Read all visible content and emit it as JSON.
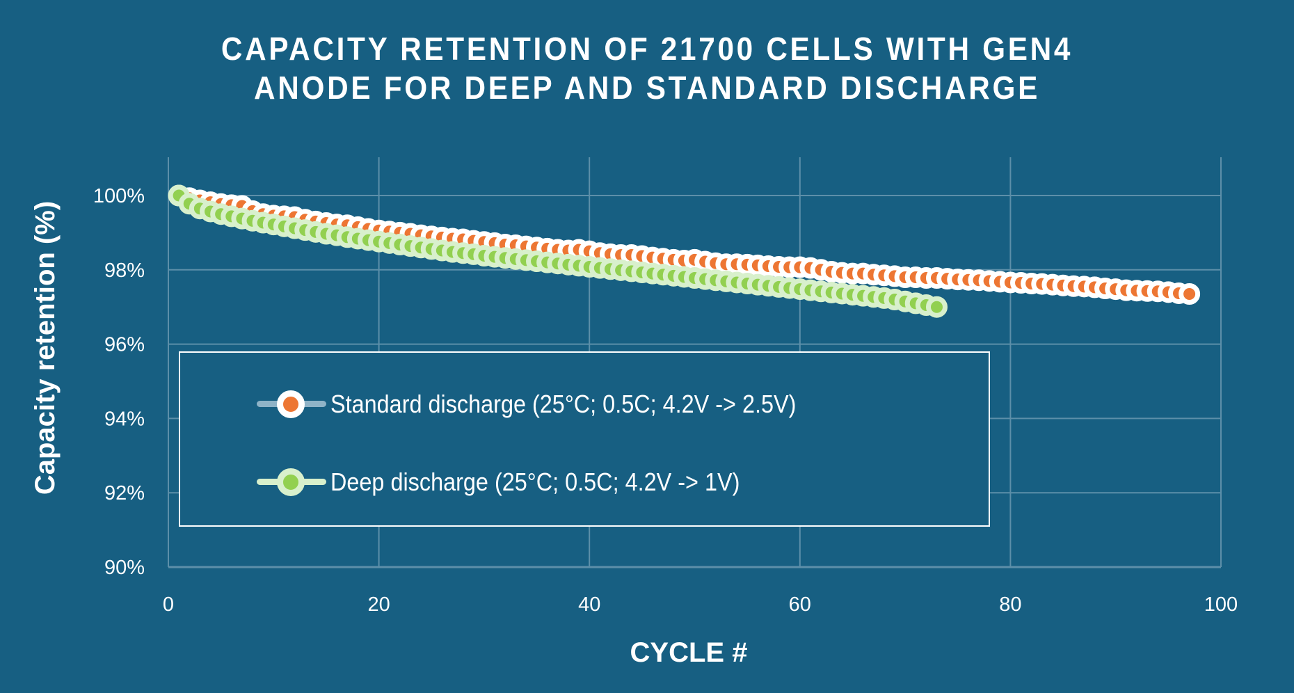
{
  "chart_data": {
    "type": "scatter",
    "title": "CAPACITY RETENTION OF 21700 CELLS WITH GEN4 ANODE FOR DEEP AND STANDARD DISCHARGE",
    "title_lines": [
      "CAPACITY RETENTION OF 21700 CELLS WITH GEN4",
      "ANODE FOR DEEP AND STANDARD DISCHARGE"
    ],
    "xlabel": "CYCLE #",
    "ylabel": "Capacity retention (%)",
    "xlim": [
      0,
      100
    ],
    "ylim": [
      90,
      100.5
    ],
    "xticks": [
      0,
      20,
      40,
      60,
      80,
      100
    ],
    "xtick_labels": [
      "0",
      "20",
      "40",
      "60",
      "80",
      "100"
    ],
    "yticks": [
      90,
      92,
      94,
      96,
      98,
      100
    ],
    "ytick_labels": [
      "90%",
      "92%",
      "94%",
      "96%",
      "98%",
      "100%"
    ],
    "grid": true,
    "legend_position": "center-left",
    "colors": {
      "background": "#175f82",
      "standard_fill": "#ed7633",
      "standard_outline": "#ffffff",
      "standard_legend_line": "#8fb3c7",
      "deep_fill": "#92d050",
      "deep_outline": "#d8f0cc",
      "grid": "#5d8fa9"
    },
    "series": [
      {
        "name": "Standard discharge (25°C; 0.5C;  4.2V -> 2.5V)",
        "x_start": 1,
        "values": [
          100.0,
          99.93,
          99.87,
          99.82,
          99.77,
          99.74,
          99.72,
          99.58,
          99.5,
          99.46,
          99.44,
          99.42,
          99.35,
          99.3,
          99.26,
          99.22,
          99.2,
          99.15,
          99.1,
          99.06,
          99.03,
          99.0,
          98.97,
          98.93,
          98.9,
          98.87,
          98.84,
          98.82,
          98.78,
          98.75,
          98.72,
          98.68,
          98.66,
          98.63,
          98.6,
          98.57,
          98.54,
          98.52,
          98.54,
          98.5,
          98.45,
          98.42,
          98.4,
          98.4,
          98.37,
          98.33,
          98.3,
          98.27,
          98.25,
          98.27,
          98.22,
          98.18,
          98.15,
          98.15,
          98.14,
          98.12,
          98.1,
          98.08,
          98.07,
          98.07,
          98.05,
          98.0,
          97.95,
          97.92,
          97.9,
          97.9,
          97.87,
          97.85,
          97.83,
          97.8,
          97.8,
          97.78,
          97.78,
          97.76,
          97.74,
          97.73,
          97.72,
          97.7,
          97.68,
          97.66,
          97.65,
          97.63,
          97.62,
          97.6,
          97.58,
          97.56,
          97.55,
          97.53,
          97.5,
          97.48,
          97.45,
          97.44,
          97.43,
          97.42,
          97.4,
          97.37,
          97.35
        ]
      },
      {
        "name": "Deep discharge (25°C; 0.5C;  4.2V -> 1V)",
        "x_start": 1,
        "values": [
          100.0,
          99.78,
          99.65,
          99.57,
          99.5,
          99.44,
          99.38,
          99.32,
          99.27,
          99.22,
          99.17,
          99.12,
          99.07,
          99.02,
          98.97,
          98.93,
          98.88,
          98.84,
          98.8,
          98.76,
          98.72,
          98.68,
          98.64,
          98.6,
          98.56,
          98.52,
          98.48,
          98.45,
          98.42,
          98.38,
          98.35,
          98.32,
          98.29,
          98.26,
          98.23,
          98.2,
          98.17,
          98.14,
          98.11,
          98.08,
          98.05,
          98.02,
          97.99,
          97.96,
          97.93,
          97.9,
          97.87,
          97.84,
          97.81,
          97.78,
          97.75,
          97.72,
          97.69,
          97.66,
          97.63,
          97.6,
          97.57,
          97.54,
          97.51,
          97.48,
          97.45,
          97.42,
          97.39,
          97.36,
          97.33,
          97.3,
          97.27,
          97.24,
          97.2,
          97.15,
          97.1,
          97.05,
          97.0
        ]
      }
    ]
  },
  "legend": {
    "items": [
      {
        "label": "Standard discharge (25°C; 0.5C;  4.2V -> 2.5V)"
      },
      {
        "label": "Deep discharge (25°C; 0.5C;  4.2V -> 1V)"
      }
    ]
  }
}
